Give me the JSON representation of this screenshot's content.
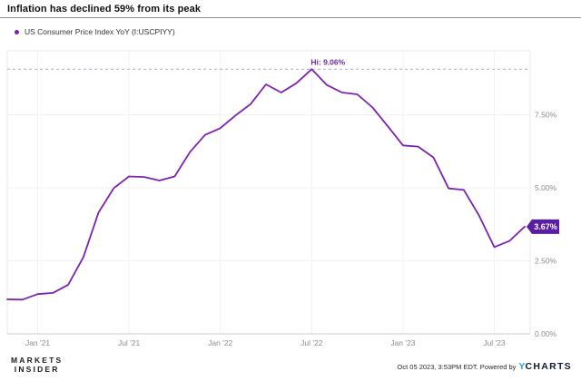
{
  "header": {
    "title": "Inflation has declined 59% from its peak"
  },
  "legend": {
    "series_label": "US Consumer Price Index YoY (I:USCPIYY)",
    "dot_color": "#7d22ad"
  },
  "chart_data": {
    "type": "line",
    "title": "Inflation has declined 59% from its peak",
    "series_name": "US Consumer Price Index YoY (I:USCPIYY)",
    "unit": "%",
    "x": [
      "Oct 2020",
      "Nov 2020",
      "Dec 2020",
      "Jan 2021",
      "Feb 2021",
      "Mar 2021",
      "Apr 2021",
      "May 2021",
      "Jun 2021",
      "Jul 2021",
      "Aug 2021",
      "Sep 2021",
      "Oct 2021",
      "Nov 2021",
      "Dec 2021",
      "Jan 2022",
      "Feb 2022",
      "Mar 2022",
      "Apr 2022",
      "May 2022",
      "Jun 2022",
      "Jul 2022",
      "Aug 2022",
      "Sep 2022",
      "Oct 2022",
      "Nov 2022",
      "Dec 2022",
      "Jan 2023",
      "Feb 2023",
      "Mar 2023",
      "Apr 2023",
      "May 2023",
      "Jun 2023",
      "Jul 2023",
      "Aug 2023"
    ],
    "values": [
      1.18,
      1.17,
      1.36,
      1.4,
      1.68,
      2.62,
      4.16,
      4.99,
      5.39,
      5.37,
      5.25,
      5.39,
      6.22,
      6.81,
      7.04,
      7.48,
      7.87,
      8.54,
      8.26,
      8.58,
      9.06,
      8.52,
      8.26,
      8.2,
      7.75,
      7.11,
      6.45,
      6.41,
      6.04,
      4.98,
      4.93,
      4.05,
      2.97,
      3.18,
      3.67
    ],
    "x_ticks": [
      {
        "label": "Jan '21",
        "month_index": 2
      },
      {
        "label": "Jul '21",
        "month_index": 8
      },
      {
        "label": "Jan '22",
        "month_index": 14
      },
      {
        "label": "Jul '22",
        "month_index": 20
      },
      {
        "label": "Jan '23",
        "month_index": 26
      },
      {
        "label": "Jul '23",
        "month_index": 32
      }
    ],
    "y_ticks": [
      {
        "label": "0.00%",
        "value": 0
      },
      {
        "label": "2.50%",
        "value": 2.5
      },
      {
        "label": "5.00%",
        "value": 5
      },
      {
        "label": "7.50%",
        "value": 7.5
      }
    ],
    "ylim": [
      0,
      9.69
    ],
    "grid": true,
    "legend_position": "top-left",
    "high_annotation": {
      "label": "Hi: 9.06%",
      "value": 9.06
    },
    "last_value_badge": {
      "label": "3.67%",
      "value": 3.67
    },
    "line_color": "#7d22ad",
    "badge_color": "#5a1da3",
    "hi_text_color": "#6c28a4",
    "dashed_line_color": "#b1a5c9"
  },
  "footer": {
    "brand_line1": "MARKETS",
    "brand_line2": "INSIDER",
    "timestamp": "Oct 05 2023, 3:53PM EDT. Powered by",
    "ycharts_y": "Y",
    "ycharts_rest": "CHARTS"
  }
}
